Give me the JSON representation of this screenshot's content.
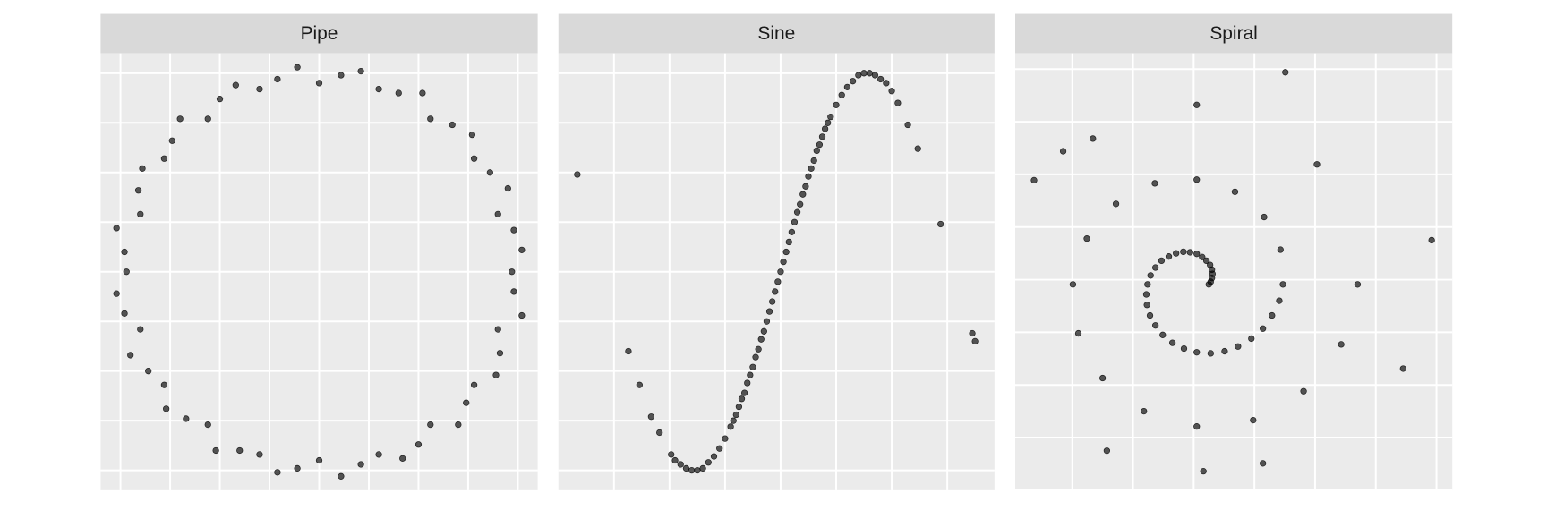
{
  "chart_data": [
    {
      "type": "scatter",
      "title": "Pipe",
      "color": "#000000",
      "grid": true,
      "xlim": [
        -1.1,
        1.1
      ],
      "ylim": [
        -1.1,
        1.1
      ],
      "xticks": [
        -1,
        -0.75,
        -0.5,
        -0.25,
        0,
        0.25,
        0.5,
        0.75,
        1
      ],
      "yticks": [
        -1,
        -0.75,
        -0.5,
        -0.25,
        0,
        0.25,
        0.5,
        0.75,
        1
      ],
      "x": [
        0.97,
        1.02,
        0.98,
        0.9,
        0.95,
        0.86,
        0.78,
        0.77,
        0.67,
        0.56,
        0.52,
        0.4,
        0.3,
        0.21,
        0.11,
        0,
        -0.11,
        -0.21,
        -0.3,
        -0.42,
        -0.5,
        -0.56,
        -0.7,
        -0.74,
        -0.78,
        -0.89,
        -0.91,
        -0.9,
        -1.02,
        -0.98,
        -0.97,
        -1.02,
        -0.98,
        -0.9,
        -0.95,
        -0.86,
        -0.78,
        -0.77,
        -0.67,
        -0.56,
        -0.52,
        -0.4,
        -0.3,
        -0.21,
        -0.11,
        0,
        0.11,
        0.21,
        0.3,
        0.42,
        0.5,
        0.56,
        0.7,
        0.74,
        0.78,
        0.89,
        0.91,
        0.9,
        1.02,
        0.98
      ],
      "values": [
        0,
        0.11,
        0.21,
        0.29,
        0.42,
        0.5,
        0.57,
        0.69,
        0.74,
        0.77,
        0.9,
        0.9,
        0.92,
        1.01,
        0.99,
        0.95,
        1.03,
        0.97,
        0.92,
        0.94,
        0.87,
        0.77,
        0.77,
        0.66,
        0.57,
        0.52,
        0.41,
        0.29,
        0.22,
        0.1,
        0,
        -0.11,
        -0.21,
        -0.29,
        -0.42,
        -0.5,
        -0.57,
        -0.69,
        -0.74,
        -0.77,
        -0.9,
        -0.9,
        -0.92,
        -1.01,
        -0.99,
        -0.95,
        -1.03,
        -0.97,
        -0.92,
        -0.94,
        -0.87,
        -0.77,
        -0.77,
        -0.66,
        -0.57,
        -0.52,
        -0.41,
        -0.29,
        -0.22,
        -0.1
      ]
    },
    {
      "type": "scatter",
      "title": "Sine",
      "color": "#000000",
      "grid": true,
      "xlim": [
        -4,
        3.85
      ],
      "ylim": [
        -1.1,
        1.1
      ],
      "xticks": [
        -3,
        -2,
        -1,
        0,
        1,
        2,
        3
      ],
      "yticks": [
        -1,
        -0.75,
        -0.5,
        -0.25,
        0,
        0.25,
        0.5,
        0.75,
        1
      ],
      "x": [
        -3.66,
        -2.74,
        -2.54,
        -2.33,
        -2.18,
        -1.97,
        -1.9,
        -1.8,
        -1.7,
        -1.6,
        -1.5,
        -1.4,
        -1.3,
        -1.2,
        -1.1,
        -1.0,
        -0.9,
        -0.85,
        -0.8,
        -0.75,
        -0.7,
        -0.65,
        -0.6,
        -0.55,
        -0.5,
        -0.45,
        -0.4,
        -0.35,
        -0.3,
        -0.25,
        -0.2,
        -0.15,
        -0.1,
        -0.05,
        0,
        0.05,
        0.1,
        0.15,
        0.2,
        0.25,
        0.3,
        0.35,
        0.4,
        0.45,
        0.5,
        0.55,
        0.6,
        0.65,
        0.7,
        0.75,
        0.8,
        0.85,
        0.9,
        1.0,
        1.1,
        1.2,
        1.3,
        1.4,
        1.5,
        1.6,
        1.7,
        1.8,
        1.9,
        2.0,
        2.11,
        2.29,
        2.47,
        2.88,
        3.45,
        3.5
      ],
      "values": [
        0.49,
        -0.4,
        -0.57,
        -0.73,
        -0.81,
        -0.92,
        -0.95,
        -0.97,
        -0.99,
        -1.0,
        -1.0,
        -0.99,
        -0.96,
        -0.93,
        -0.89,
        -0.84,
        -0.78,
        -0.75,
        -0.72,
        -0.68,
        -0.64,
        -0.61,
        -0.56,
        -0.52,
        -0.48,
        -0.43,
        -0.39,
        -0.34,
        -0.3,
        -0.25,
        -0.2,
        -0.15,
        -0.1,
        -0.05,
        0,
        0.05,
        0.1,
        0.15,
        0.2,
        0.25,
        0.3,
        0.34,
        0.39,
        0.43,
        0.48,
        0.52,
        0.56,
        0.61,
        0.64,
        0.68,
        0.72,
        0.75,
        0.78,
        0.84,
        0.89,
        0.93,
        0.96,
        0.99,
        1.0,
        1.0,
        0.99,
        0.97,
        0.95,
        0.91,
        0.85,
        0.74,
        0.62,
        0.24,
        -0.31,
        -0.35
      ]
    },
    {
      "type": "scatter",
      "title": "Spiral",
      "color": "#000000",
      "grid": true,
      "xlim": [
        -2.94,
        4.26
      ],
      "ylim": [
        -4,
        4.3
      ],
      "xticks": [
        -2,
        -1,
        0,
        1,
        2,
        3,
        4
      ],
      "yticks": [
        -4,
        -3,
        -2,
        -1,
        0,
        1,
        2,
        3,
        4
      ],
      "x": [
        0.25,
        0.28,
        0.3,
        0.31,
        0.3,
        0.27,
        0.21,
        0.14,
        0.05,
        -0.06,
        -0.17,
        -0.29,
        -0.41,
        -0.53,
        -0.63,
        -0.71,
        -0.76,
        -0.78,
        -0.77,
        -0.72,
        -0.63,
        -0.51,
        -0.35,
        -0.16,
        0.05,
        0.28,
        0.51,
        0.73,
        0.95,
        1.14,
        1.29,
        1.41,
        1.47,
        1.43,
        1.16,
        0.68,
        0.05,
        -0.64,
        -1.28,
        -1.76,
        -1.99,
        -1.9,
        -1.5,
        -0.82,
        0.05,
        0.98,
        1.81,
        2.43,
        2.7,
        2.03,
        0.05,
        -2.15,
        3.92,
        3.45,
        1.14,
        0.16,
        -1.43,
        -2.63,
        1.51,
        -1.66
      ],
      "values": [
        -0.09,
        -0.04,
        0.03,
        0.11,
        0.19,
        0.28,
        0.36,
        0.43,
        0.49,
        0.52,
        0.53,
        0.5,
        0.44,
        0.36,
        0.23,
        0.08,
        -0.09,
        -0.28,
        -0.48,
        -0.68,
        -0.87,
        -1.05,
        -1.2,
        -1.31,
        -1.38,
        -1.4,
        -1.36,
        -1.27,
        -1.12,
        -0.93,
        -0.68,
        -0.4,
        -0.09,
        0.57,
        1.19,
        1.67,
        1.9,
        1.83,
        1.44,
        0.78,
        -0.09,
        -1.02,
        -1.87,
        -2.5,
        -2.79,
        -2.67,
        -2.12,
        -1.23,
        -0.09,
        2.19,
        3.32,
        2.44,
        0.75,
        -1.69,
        -3.49,
        -3.64,
        -3.25,
        1.89,
        3.94,
        2.68
      ]
    }
  ]
}
